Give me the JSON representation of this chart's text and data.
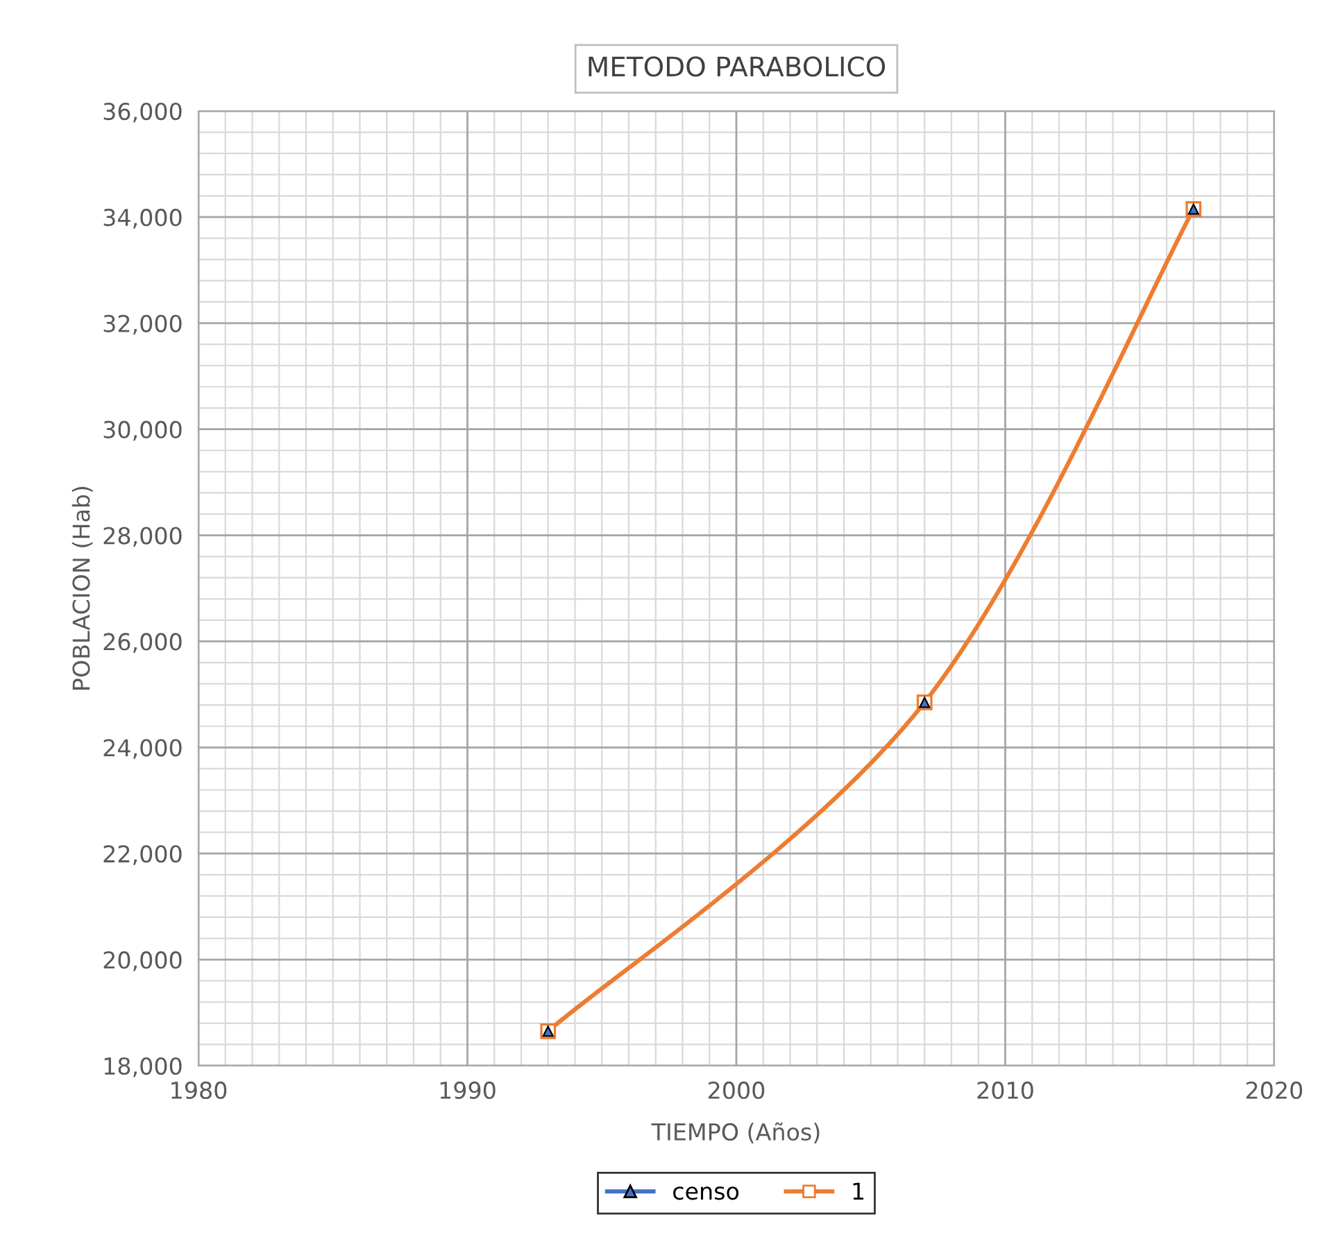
{
  "chart_data": {
    "type": "line",
    "title": "METODO PARABOLICO",
    "xlabel": "TIEMPO (Años)",
    "ylabel": "POBLACION (Hab)",
    "x": [
      1993,
      2007,
      2017
    ],
    "series": [
      {
        "name": "censo",
        "type": "scatter",
        "color": "#4472c4",
        "values": [
          18650,
          24850,
          34150
        ],
        "marker": "triangle"
      },
      {
        "name": "1",
        "color": "#ed7d31",
        "values": [
          18650,
          24850,
          34150
        ],
        "marker": "square"
      }
    ],
    "xlim": [
      1980,
      2020
    ],
    "xticks": [
      1980,
      1990,
      2000,
      2010,
      2020
    ],
    "ylim": [
      18000,
      36000
    ],
    "yticks": [
      {
        "value": 18000,
        "label": "18,000"
      },
      {
        "value": 20000,
        "label": "20,000"
      },
      {
        "value": 22000,
        "label": "22,000"
      },
      {
        "value": 24000,
        "label": "24,000"
      },
      {
        "value": 26000,
        "label": "26,000"
      },
      {
        "value": 28000,
        "label": "28,000"
      },
      {
        "value": 30000,
        "label": "30,000"
      },
      {
        "value": 32000,
        "label": "32,000"
      },
      {
        "value": 34000,
        "label": "34,000"
      },
      {
        "value": 36000,
        "label": "36,000"
      }
    ],
    "grid": true,
    "legend": "bottom",
    "line_style": "solid"
  }
}
